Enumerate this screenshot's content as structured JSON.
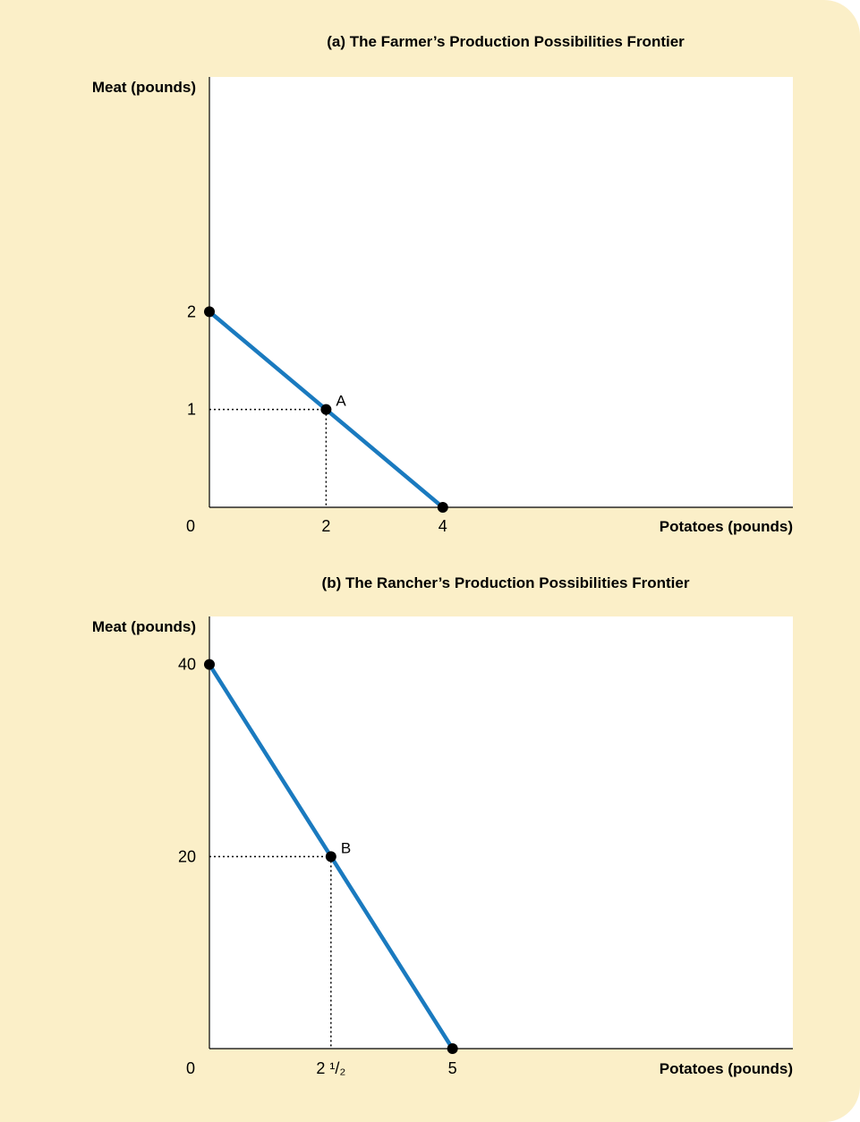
{
  "chart_data": [
    {
      "type": "line",
      "title": "(a) The Farmer’s Production Possibilities Frontier",
      "xlabel": "Potatoes (pounds)",
      "ylabel": "Meat (pounds)",
      "xlim": [
        0,
        10
      ],
      "ylim": [
        0,
        4.4
      ],
      "origin_label": "0",
      "x_ticks": [
        {
          "value": 2,
          "label": "2"
        },
        {
          "value": 4,
          "label": "4"
        }
      ],
      "y_ticks": [
        {
          "value": 1,
          "label": "1"
        },
        {
          "value": 2,
          "label": "2"
        }
      ],
      "series": [
        {
          "x": [
            0,
            2,
            4
          ],
          "y": [
            2,
            1,
            0
          ],
          "color": "#1a7abf"
        }
      ],
      "points": [
        {
          "x": 0,
          "y": 2,
          "label": ""
        },
        {
          "x": 2,
          "y": 1,
          "label": "A"
        },
        {
          "x": 4,
          "y": 0,
          "label": ""
        }
      ],
      "guides": [
        {
          "x": 2,
          "y": 1
        }
      ],
      "grid": false
    },
    {
      "type": "line",
      "title": "(b) The Rancher’s Production Possibilities Frontier",
      "xlabel": "Potatoes (pounds)",
      "ylabel": "Meat (pounds)",
      "xlim": [
        0,
        12
      ],
      "ylim": [
        0,
        45
      ],
      "origin_label": "0",
      "x_ticks": [
        {
          "value": 2.5,
          "label": "2 ¹/₂"
        },
        {
          "value": 5,
          "label": "5"
        }
      ],
      "y_ticks": [
        {
          "value": 20,
          "label": "20"
        },
        {
          "value": 40,
          "label": "40"
        }
      ],
      "series": [
        {
          "x": [
            0,
            2.5,
            5
          ],
          "y": [
            40,
            20,
            0
          ],
          "color": "#1a7abf"
        }
      ],
      "points": [
        {
          "x": 0,
          "y": 40,
          "label": ""
        },
        {
          "x": 2.5,
          "y": 20,
          "label": "B"
        },
        {
          "x": 5,
          "y": 0,
          "label": ""
        }
      ],
      "guides": [
        {
          "x": 2.5,
          "y": 20
        }
      ],
      "grid": false
    }
  ]
}
